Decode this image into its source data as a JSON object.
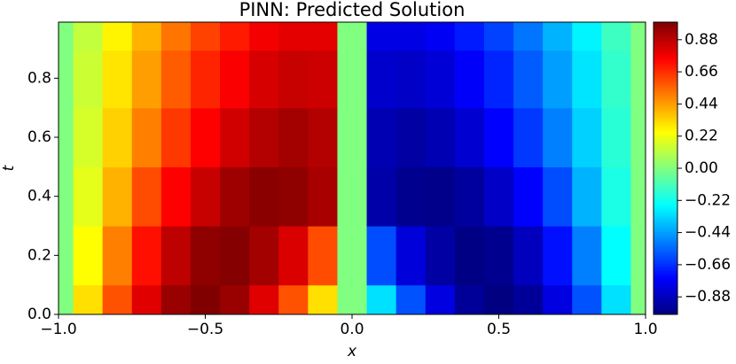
{
  "chart_data": {
    "type": "heatmap",
    "title": "PINN: Predicted Solution",
    "xlabel": "x",
    "ylabel": "t",
    "colormap": "jet",
    "x": [
      -1.0,
      -0.9,
      -0.8,
      -0.7,
      -0.6,
      -0.5,
      -0.4,
      -0.3,
      -0.2,
      -0.1,
      0.0,
      0.1,
      0.2,
      0.3,
      0.4,
      0.5,
      0.6,
      0.7,
      0.8,
      0.9,
      1.0
    ],
    "t": [
      0.0,
      0.2,
      0.4,
      0.6,
      0.8,
      0.99
    ],
    "values": [
      [
        0,
        0.31,
        0.59,
        0.81,
        0.95,
        1.0,
        0.95,
        0.81,
        0.59,
        0.31,
        0,
        -0.31,
        -0.59,
        -0.81,
        -0.95,
        -1.0,
        -0.95,
        -0.81,
        -0.59,
        -0.31,
        0
      ],
      [
        0,
        0.25,
        0.5,
        0.72,
        0.88,
        0.97,
        0.99,
        0.93,
        0.82,
        0.6,
        0,
        -0.6,
        -0.82,
        -0.93,
        -0.99,
        -0.97,
        -0.88,
        -0.72,
        -0.5,
        -0.25,
        0
      ],
      [
        0,
        0.2,
        0.4,
        0.6,
        0.75,
        0.86,
        0.94,
        0.98,
        0.97,
        0.92,
        0,
        -0.92,
        -0.97,
        -0.98,
        -0.94,
        -0.86,
        -0.75,
        -0.6,
        -0.4,
        -0.2,
        0
      ],
      [
        0,
        0.17,
        0.34,
        0.5,
        0.64,
        0.75,
        0.84,
        0.9,
        0.93,
        0.9,
        0,
        -0.9,
        -0.93,
        -0.9,
        -0.84,
        -0.75,
        -0.64,
        -0.5,
        -0.34,
        -0.17,
        0
      ],
      [
        0,
        0.15,
        0.3,
        0.44,
        0.57,
        0.68,
        0.76,
        0.83,
        0.86,
        0.85,
        0,
        -0.85,
        -0.86,
        -0.83,
        -0.76,
        -0.68,
        -0.57,
        -0.44,
        -0.3,
        -0.15,
        0
      ],
      [
        0,
        0.13,
        0.27,
        0.4,
        0.52,
        0.62,
        0.7,
        0.77,
        0.8,
        0.8,
        0,
        -0.8,
        -0.8,
        -0.77,
        -0.7,
        -0.62,
        -0.52,
        -0.4,
        -0.27,
        -0.13,
        0
      ]
    ],
    "xlim": [
      -1.0,
      1.0
    ],
    "ylim": [
      0,
      0.99
    ],
    "clim": [
      -1.0,
      1.0
    ],
    "xticks": [
      {
        "value": -1.0,
        "label": "−1.0"
      },
      {
        "value": -0.5,
        "label": "−0.5"
      },
      {
        "value": 0,
        "label": "0.0"
      },
      0.5,
      {
        "value": 1,
        "label": "1.0"
      }
    ],
    "yticks": [
      {
        "value": 0,
        "label": "0.0"
      },
      0.2,
      0.4,
      0.6,
      0.8
    ],
    "cticks": [
      0.88,
      0.66,
      0.44,
      0.22,
      {
        "value": 0,
        "label": "0.00"
      },
      {
        "value": -0.22,
        "label": "−0.22"
      },
      {
        "value": -0.44,
        "label": "−0.44"
      },
      {
        "value": -0.66,
        "label": "−0.66"
      },
      {
        "value": -0.88,
        "label": "−0.88"
      }
    ]
  }
}
